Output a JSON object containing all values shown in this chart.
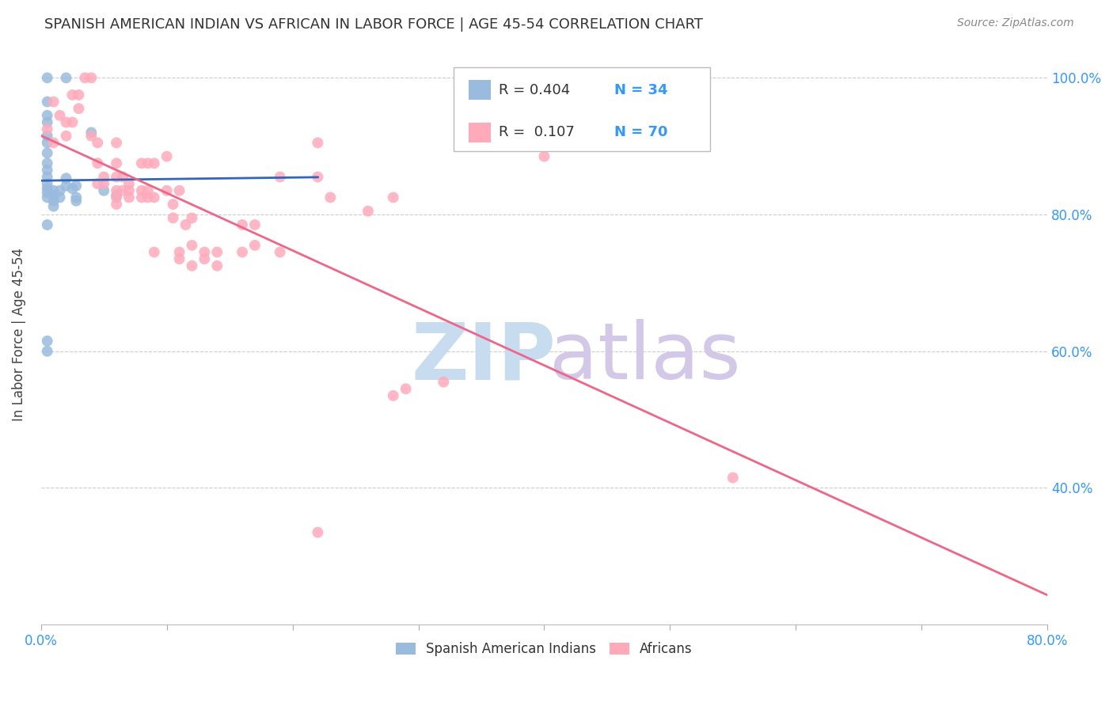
{
  "title": "SPANISH AMERICAN INDIAN VS AFRICAN IN LABOR FORCE | AGE 45-54 CORRELATION CHART",
  "source": "Source: ZipAtlas.com",
  "ylabel": "In Labor Force | Age 45-54",
  "xlim": [
    0.0,
    0.8
  ],
  "ylim": [
    0.2,
    1.05
  ],
  "color_blue": "#99BBDD",
  "color_pink": "#FFAABB",
  "color_blue_line": "#3366BB",
  "color_pink_line": "#EE6688",
  "color_label_blue": "#3399FF",
  "grid_color": "#CCCCCC",
  "blue_dots": [
    [
      0.005,
      1.0
    ],
    [
      0.02,
      1.0
    ],
    [
      0.005,
      0.965
    ],
    [
      0.005,
      0.945
    ],
    [
      0.005,
      0.935
    ],
    [
      0.005,
      0.915
    ],
    [
      0.005,
      0.905
    ],
    [
      0.005,
      0.89
    ],
    [
      0.005,
      0.875
    ],
    [
      0.005,
      0.865
    ],
    [
      0.005,
      0.855
    ],
    [
      0.005,
      0.845
    ],
    [
      0.005,
      0.838
    ],
    [
      0.005,
      0.832
    ],
    [
      0.005,
      0.825
    ],
    [
      0.01,
      0.835
    ],
    [
      0.01,
      0.828
    ],
    [
      0.01,
      0.82
    ],
    [
      0.01,
      0.812
    ],
    [
      0.015,
      0.835
    ],
    [
      0.015,
      0.825
    ],
    [
      0.02,
      0.853
    ],
    [
      0.02,
      0.842
    ],
    [
      0.025,
      0.838
    ],
    [
      0.028,
      0.842
    ],
    [
      0.028,
      0.825
    ],
    [
      0.028,
      0.82
    ],
    [
      0.04,
      0.92
    ],
    [
      0.05,
      0.835
    ],
    [
      0.06,
      0.828
    ],
    [
      0.005,
      0.615
    ],
    [
      0.005,
      0.785
    ],
    [
      0.005,
      0.6
    ]
  ],
  "pink_dots": [
    [
      0.005,
      0.925
    ],
    [
      0.01,
      0.965
    ],
    [
      0.01,
      0.905
    ],
    [
      0.015,
      0.945
    ],
    [
      0.02,
      0.935
    ],
    [
      0.02,
      0.915
    ],
    [
      0.025,
      0.975
    ],
    [
      0.025,
      0.935
    ],
    [
      0.03,
      0.975
    ],
    [
      0.03,
      0.955
    ],
    [
      0.035,
      1.0
    ],
    [
      0.04,
      1.0
    ],
    [
      0.04,
      0.915
    ],
    [
      0.045,
      0.905
    ],
    [
      0.045,
      0.875
    ],
    [
      0.045,
      0.845
    ],
    [
      0.05,
      0.855
    ],
    [
      0.05,
      0.845
    ],
    [
      0.06,
      0.905
    ],
    [
      0.06,
      0.875
    ],
    [
      0.06,
      0.855
    ],
    [
      0.06,
      0.835
    ],
    [
      0.06,
      0.825
    ],
    [
      0.06,
      0.815
    ],
    [
      0.065,
      0.855
    ],
    [
      0.065,
      0.835
    ],
    [
      0.07,
      0.845
    ],
    [
      0.07,
      0.835
    ],
    [
      0.07,
      0.825
    ],
    [
      0.08,
      0.875
    ],
    [
      0.08,
      0.835
    ],
    [
      0.08,
      0.825
    ],
    [
      0.085,
      0.875
    ],
    [
      0.085,
      0.835
    ],
    [
      0.085,
      0.825
    ],
    [
      0.09,
      0.875
    ],
    [
      0.09,
      0.825
    ],
    [
      0.09,
      0.745
    ],
    [
      0.1,
      0.885
    ],
    [
      0.1,
      0.835
    ],
    [
      0.105,
      0.815
    ],
    [
      0.105,
      0.795
    ],
    [
      0.11,
      0.835
    ],
    [
      0.11,
      0.745
    ],
    [
      0.11,
      0.735
    ],
    [
      0.115,
      0.785
    ],
    [
      0.12,
      0.795
    ],
    [
      0.12,
      0.755
    ],
    [
      0.12,
      0.725
    ],
    [
      0.13,
      0.745
    ],
    [
      0.13,
      0.735
    ],
    [
      0.14,
      0.745
    ],
    [
      0.14,
      0.725
    ],
    [
      0.16,
      0.785
    ],
    [
      0.16,
      0.745
    ],
    [
      0.17,
      0.785
    ],
    [
      0.17,
      0.755
    ],
    [
      0.19,
      0.855
    ],
    [
      0.19,
      0.745
    ],
    [
      0.22,
      0.905
    ],
    [
      0.22,
      0.855
    ],
    [
      0.23,
      0.825
    ],
    [
      0.26,
      0.805
    ],
    [
      0.28,
      0.825
    ],
    [
      0.28,
      0.535
    ],
    [
      0.29,
      0.545
    ],
    [
      0.32,
      0.555
    ],
    [
      0.4,
      0.885
    ],
    [
      0.55,
      0.415
    ],
    [
      0.22,
      0.335
    ]
  ]
}
